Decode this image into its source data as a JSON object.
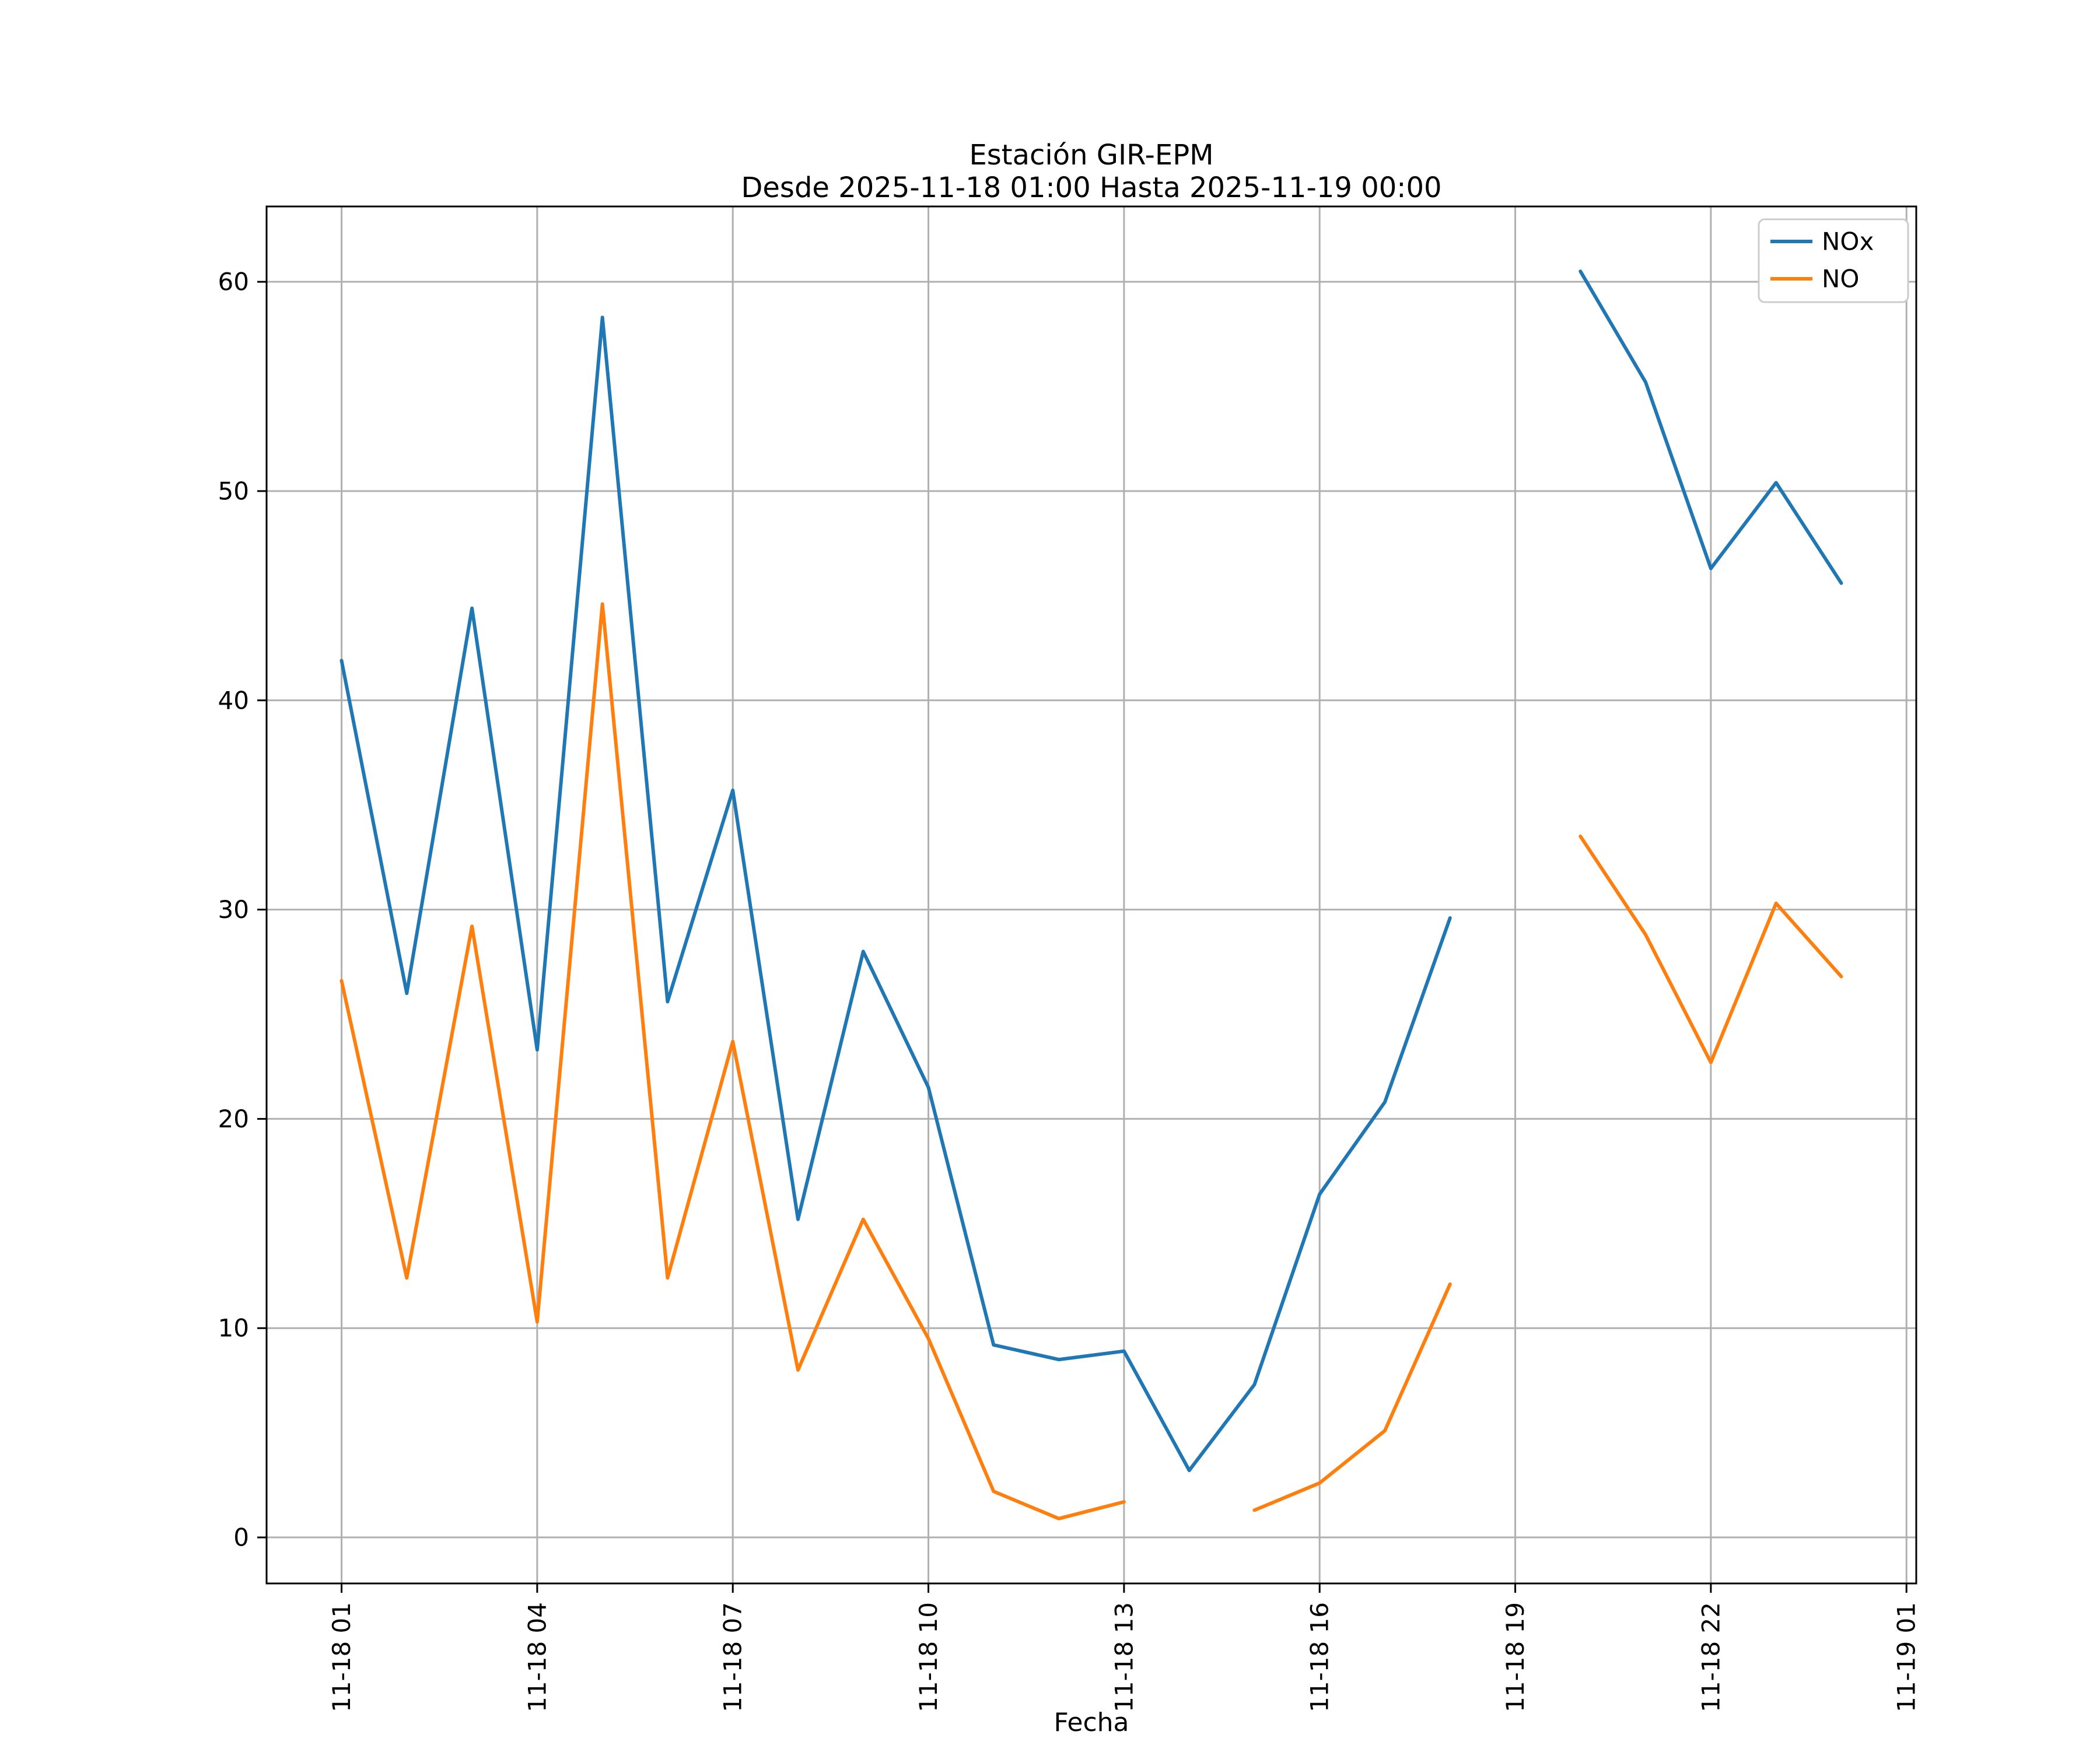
{
  "chart_data": {
    "type": "line",
    "title_lines": [
      "Estación GIR-EPM",
      "Desde 2025-11-18 01:00 Hasta 2025-11-19 00:00"
    ],
    "xlabel": "Fecha",
    "ylabel": "",
    "grid": true,
    "legend_position": "upper right",
    "xlim": [
      -0.15,
      25.15
    ],
    "ylim": [
      -2.2,
      63.6
    ],
    "x_ticks": [
      {
        "x": 1,
        "label": "11-18 01"
      },
      {
        "x": 4,
        "label": "11-18 04"
      },
      {
        "x": 7,
        "label": "11-18 07"
      },
      {
        "x": 10,
        "label": "11-18 10"
      },
      {
        "x": 13,
        "label": "11-18 13"
      },
      {
        "x": 16,
        "label": "11-18 16"
      },
      {
        "x": 19,
        "label": "11-18 19"
      },
      {
        "x": 22,
        "label": "11-18 22"
      },
      {
        "x": 25,
        "label": "11-19 01"
      }
    ],
    "y_ticks": [
      0,
      10,
      20,
      30,
      40,
      50,
      60
    ],
    "x": [
      1,
      2,
      3,
      4,
      5,
      6,
      7,
      8,
      9,
      10,
      11,
      12,
      13,
      14,
      15,
      16,
      17,
      18,
      19,
      20,
      21,
      22,
      23,
      24
    ],
    "series": [
      {
        "name": "NOx",
        "color": "#1f77b4",
        "values": [
          41.9,
          26.0,
          44.4,
          23.3,
          58.3,
          25.6,
          35.7,
          15.2,
          28.0,
          21.5,
          9.2,
          8.5,
          8.9,
          3.2,
          7.3,
          16.4,
          20.8,
          29.6,
          null,
          60.5,
          55.2,
          46.3,
          50.4,
          45.6
        ]
      },
      {
        "name": "NO",
        "color": "#ff7f0e",
        "values": [
          26.6,
          12.4,
          29.2,
          10.3,
          44.6,
          12.4,
          23.7,
          8.0,
          15.2,
          9.5,
          2.2,
          0.9,
          1.7,
          null,
          1.3,
          2.6,
          5.1,
          12.1,
          null,
          33.5,
          28.8,
          22.7,
          30.3,
          26.8
        ]
      }
    ],
    "colors": {
      "grid": "#b0b0b0",
      "spine": "#000000",
      "legend_border": "#cccccc",
      "background": "#ffffff"
    }
  }
}
